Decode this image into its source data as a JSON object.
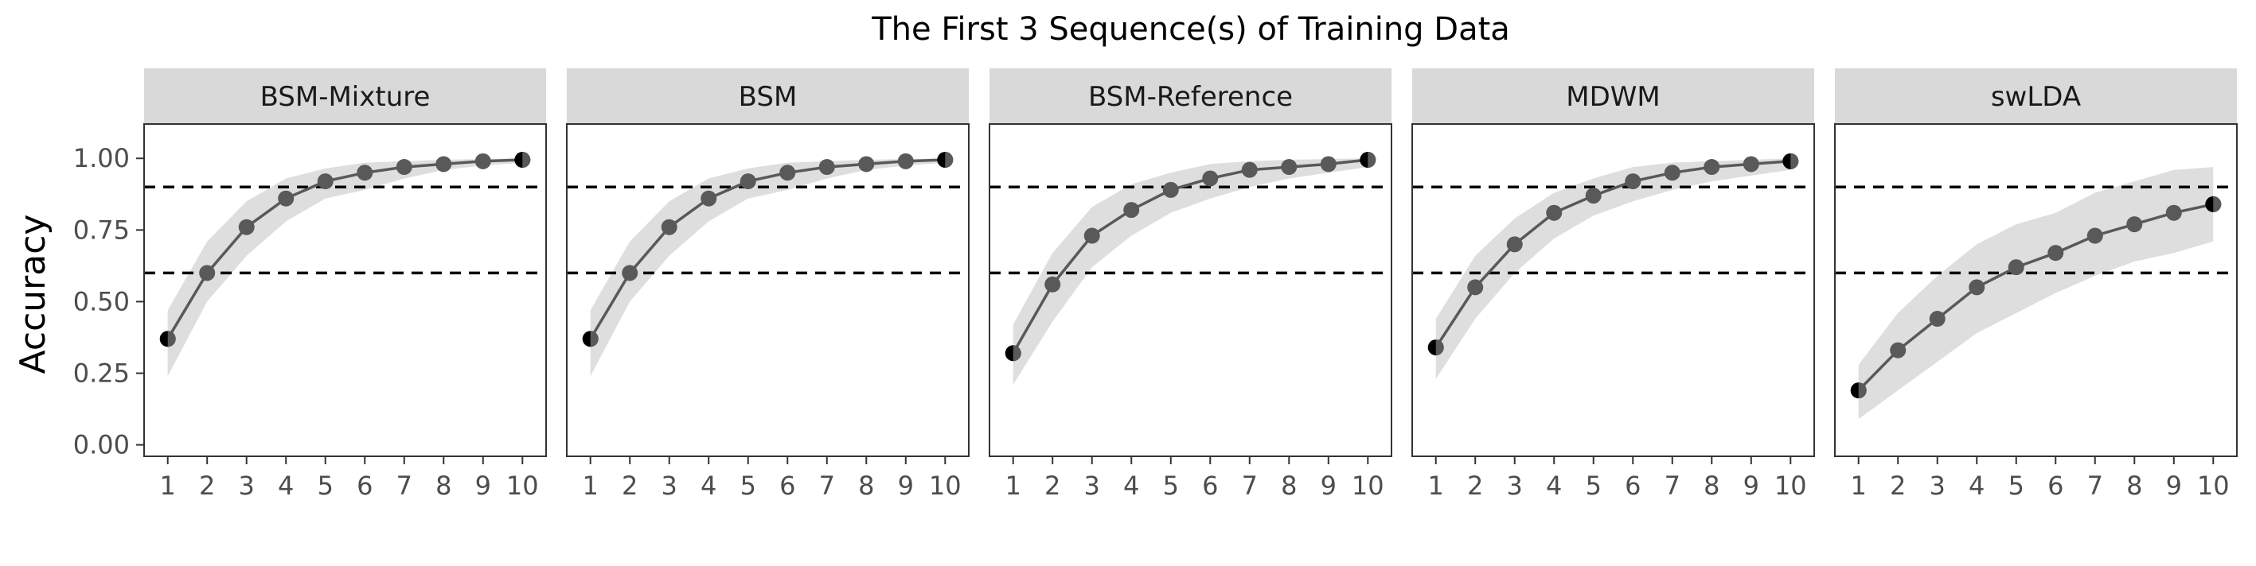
{
  "chart_data": {
    "type": "line",
    "title": "The First 3 Sequence(s) of Training Data",
    "ylabel": "Accuracy",
    "xlabel": "",
    "x": [
      1,
      2,
      3,
      4,
      5,
      6,
      7,
      8,
      9,
      10
    ],
    "ylim": [
      -0.04,
      1.12
    ],
    "yticks": [
      0.0,
      0.25,
      0.5,
      0.75,
      1.0
    ],
    "ytick_labels": [
      "0.00",
      "0.25",
      "0.50",
      "0.75",
      "1.00"
    ],
    "reference_lines": [
      0.9,
      0.6
    ],
    "grid": false,
    "panels": [
      {
        "name": "BSM-Mixture",
        "values": [
          0.37,
          0.6,
          0.76,
          0.86,
          0.92,
          0.95,
          0.97,
          0.98,
          0.99,
          0.995
        ],
        "band_lower": [
          0.24,
          0.5,
          0.66,
          0.78,
          0.86,
          0.89,
          0.93,
          0.96,
          0.975,
          0.985
        ],
        "band_upper": [
          0.47,
          0.71,
          0.85,
          0.93,
          0.965,
          0.985,
          0.99,
          0.995,
          0.998,
          1.0
        ]
      },
      {
        "name": "BSM",
        "values": [
          0.37,
          0.6,
          0.76,
          0.86,
          0.92,
          0.95,
          0.97,
          0.98,
          0.99,
          0.995
        ],
        "band_lower": [
          0.24,
          0.5,
          0.66,
          0.78,
          0.86,
          0.89,
          0.93,
          0.96,
          0.975,
          0.985
        ],
        "band_upper": [
          0.47,
          0.71,
          0.85,
          0.93,
          0.965,
          0.985,
          0.99,
          0.995,
          0.998,
          1.0
        ]
      },
      {
        "name": "BSM-Reference",
        "values": [
          0.32,
          0.56,
          0.73,
          0.82,
          0.89,
          0.93,
          0.96,
          0.97,
          0.98,
          0.995
        ],
        "band_lower": [
          0.21,
          0.43,
          0.62,
          0.73,
          0.81,
          0.86,
          0.9,
          0.93,
          0.95,
          0.97
        ],
        "band_upper": [
          0.42,
          0.67,
          0.83,
          0.91,
          0.95,
          0.98,
          0.99,
          0.995,
          0.998,
          1.0
        ]
      },
      {
        "name": "MDWM",
        "values": [
          0.34,
          0.55,
          0.7,
          0.81,
          0.87,
          0.92,
          0.95,
          0.97,
          0.98,
          0.99
        ],
        "band_lower": [
          0.23,
          0.44,
          0.6,
          0.72,
          0.8,
          0.85,
          0.89,
          0.92,
          0.94,
          0.96
        ],
        "band_upper": [
          0.44,
          0.66,
          0.79,
          0.88,
          0.93,
          0.97,
          0.985,
          0.99,
          0.995,
          1.0
        ]
      },
      {
        "name": "swLDA",
        "values": [
          0.19,
          0.33,
          0.44,
          0.55,
          0.62,
          0.67,
          0.73,
          0.77,
          0.81,
          0.84
        ],
        "band_lower": [
          0.09,
          0.19,
          0.29,
          0.39,
          0.46,
          0.53,
          0.59,
          0.64,
          0.67,
          0.71
        ],
        "band_upper": [
          0.28,
          0.46,
          0.59,
          0.7,
          0.77,
          0.81,
          0.88,
          0.92,
          0.96,
          0.97
        ]
      }
    ]
  }
}
